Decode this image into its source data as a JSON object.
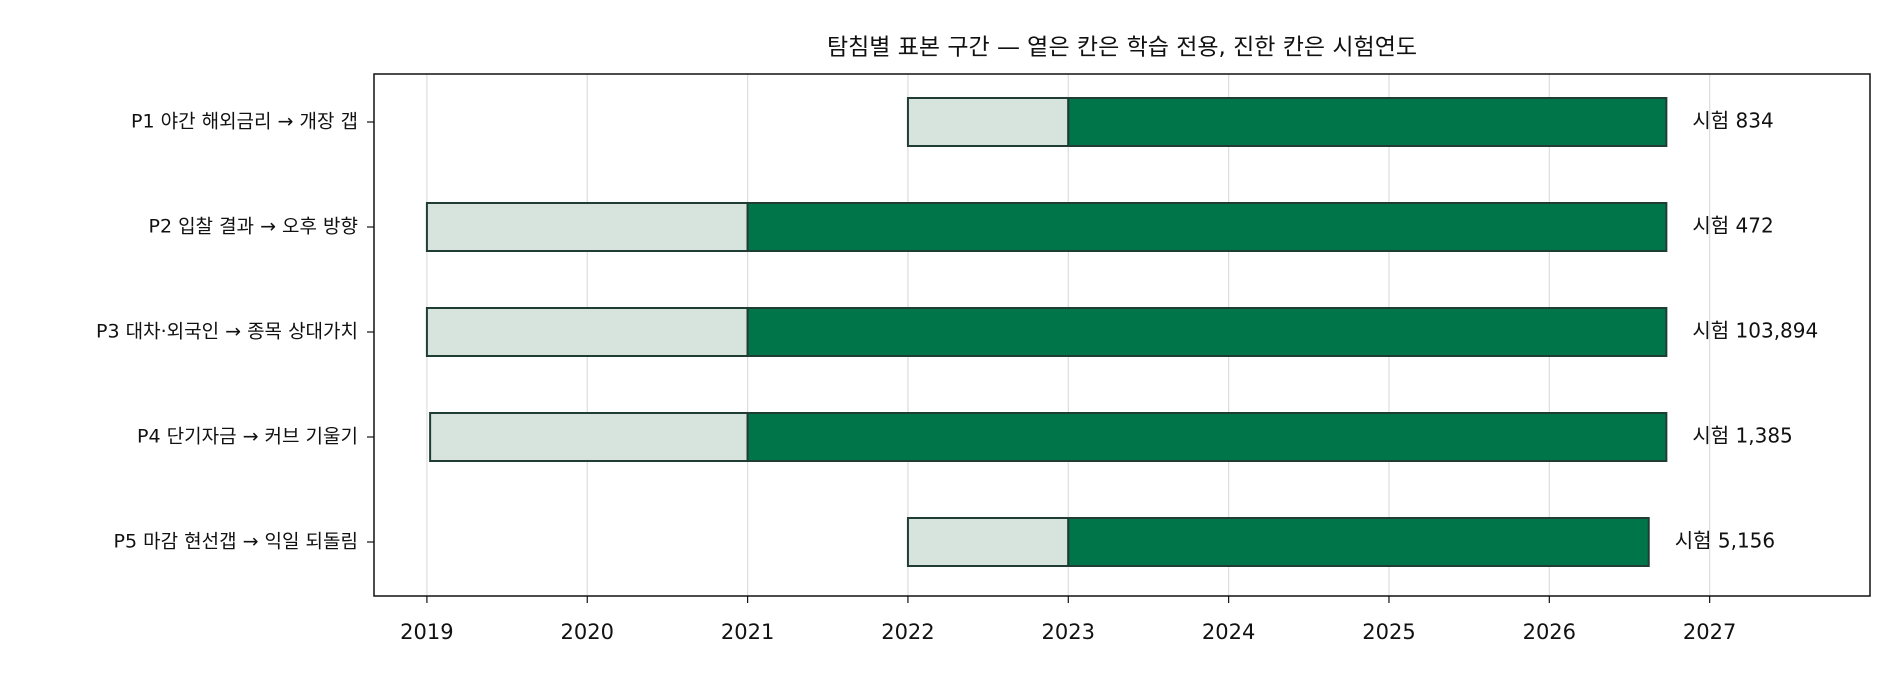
{
  "chart_data": {
    "type": "timeline",
    "title": "탐침별 표본 구간 — 옅은 칸은 학습 전용, 진한 칸은 시험연도",
    "categories": [
      "P1 야간 해외금리 → 개장 갭",
      "P2 입찰 결과 → 오후 방향",
      "P3 대차·외국인 → 종목 상대가치",
      "P4 단기자금 → 커브 기울기",
      "P5 마감 현선갭 → 익일 되돌림"
    ],
    "train_start": [
      2022.0,
      2019.0,
      2019.0,
      2019.02,
      2022.0
    ],
    "test_start": [
      2023.0,
      2021.0,
      2021.0,
      2021.0,
      2023.0
    ],
    "end": [
      2026.73,
      2026.73,
      2026.73,
      2026.73,
      2026.62
    ],
    "values": [
      834,
      472,
      103894,
      1385,
      5156
    ],
    "value_labels": [
      "시험 834",
      "시험 472",
      "시험 103,894",
      "시험 1,385",
      "시험 5,156"
    ],
    "train_color": "#d6e4dd",
    "test_color": "#00754a",
    "edge_color": "#1f3d33",
    "xlim": [
      2018.67,
      2028.0
    ],
    "xticks": [
      2019,
      2020,
      2021,
      2022,
      2023,
      2024,
      2025,
      2026,
      2027
    ],
    "grid": true
  }
}
